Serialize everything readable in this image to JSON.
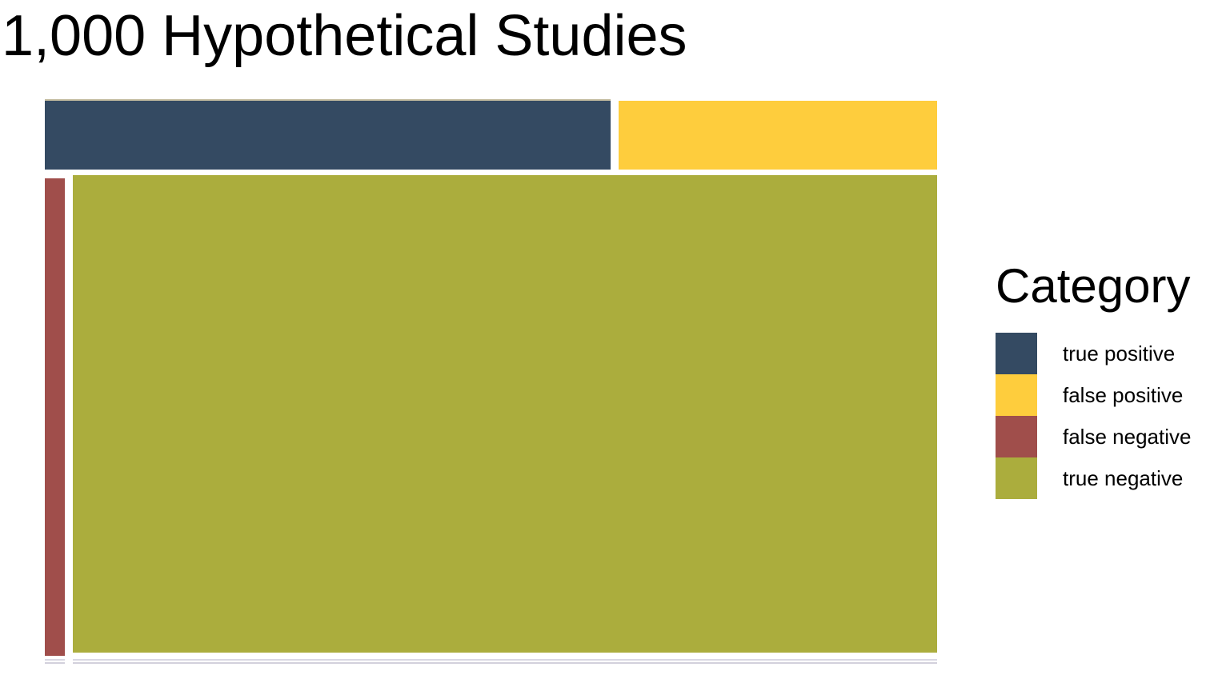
{
  "chart_data": {
    "type": "mosaic",
    "title": "1,000 Hypothetical Studies",
    "legend_title": "Category",
    "legend_placement": "right",
    "total": 1000,
    "categories": [
      {
        "name": "true positive",
        "value": 80,
        "color": "#344A62"
      },
      {
        "name": "false positive",
        "value": 45,
        "color": "#FECD3D"
      },
      {
        "name": "false negative",
        "value": 20,
        "color": "#A04E4B"
      },
      {
        "name": "true negative",
        "value": 855,
        "color": "#ABAD3D"
      }
    ]
  }
}
